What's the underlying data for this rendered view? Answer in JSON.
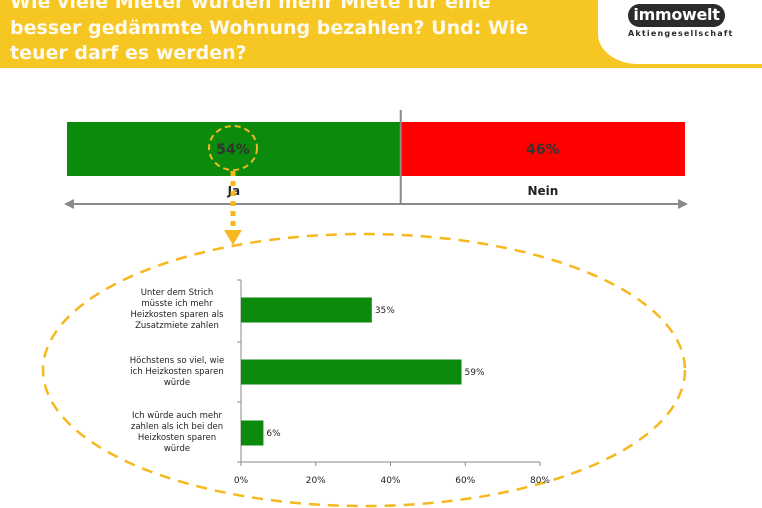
{
  "header": {
    "title_lines": [
      "Wie viele Mieter würden mehr Miete für eine",
      "besser gedämmte Wohnung bezahlen? Und: Wie",
      "teuer darf es werden?"
    ],
    "logo_text": "immowelt",
    "logo_subtext": "Aktiengesellschaft"
  },
  "colors": {
    "header": "#f6c623",
    "green": "#0b8a0b",
    "red": "#ff0000",
    "dashed": "#f6b81e",
    "arrow": "#8a8a8a"
  },
  "chart_data": [
    {
      "type": "bar",
      "orientation": "horizontal-stacked",
      "categories": [
        "Ja",
        "Nein"
      ],
      "values": [
        54,
        46
      ],
      "value_labels": [
        "54%",
        "46%"
      ]
    },
    {
      "type": "bar",
      "orientation": "horizontal",
      "categories": [
        "Unter dem Strich müsste ich mehr Heizkosten sparen als Zusatzmiete zahlen",
        "Höchstens so viel, wie ich Heizkosten sparen würde",
        "Ich würde auch mehr zahlen als ich bei den Heizkosten sparen würde"
      ],
      "category_lines": [
        [
          "Unter dem Strich",
          "müsste ich mehr",
          "Heizkosten sparen als",
          "Zusatzmiete zahlen"
        ],
        [
          "Höchstens so viel, wie",
          "ich Heizkosten sparen",
          "würde"
        ],
        [
          "Ich würde auch mehr",
          "zahlen als ich bei den",
          "Heizkosten sparen",
          "würde"
        ]
      ],
      "values": [
        35,
        59,
        6
      ],
      "value_labels": [
        "35%",
        "59%",
        "6%"
      ],
      "xlim": [
        0,
        80
      ],
      "ticks": [
        0,
        20,
        40,
        60,
        80
      ],
      "tick_labels": [
        "0%",
        "20%",
        "40%",
        "60%",
        "80%"
      ]
    }
  ]
}
